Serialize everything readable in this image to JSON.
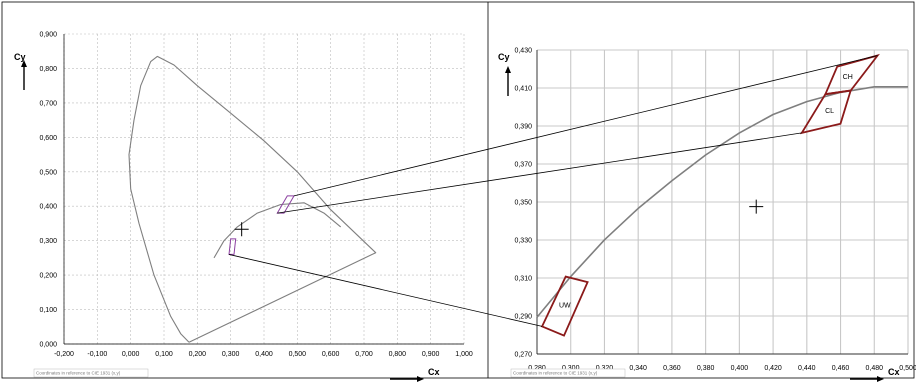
{
  "chart_data": [
    {
      "type": "line",
      "ylabel": "Cy",
      "xlabel": "Cx",
      "xlim": [
        -0.2,
        1.0
      ],
      "ylim": [
        0.0,
        0.9
      ],
      "x_ticks": [
        "-0,200",
        "-0,100",
        "0,000",
        "0,100",
        "0,200",
        "0,300",
        "0,400",
        "0,500",
        "0,600",
        "0,700",
        "0,800",
        "0,900",
        "1,000"
      ],
      "y_ticks": [
        "0,000",
        "0,100",
        "0,200",
        "0,300",
        "0,400",
        "0,500",
        "0,600",
        "0,700",
        "0,800",
        "0,900"
      ],
      "grid": true,
      "note": "Coordinates in reference to CIE 1931 (x,y)",
      "series": [
        {
          "values": [
            [
              0.175,
              0.005
            ],
            [
              0.15,
              0.03
            ],
            [
              0.12,
              0.08
            ],
            [
              0.07,
              0.2
            ],
            [
              0.025,
              0.35
            ],
            [
              0.0,
              0.45
            ],
            [
              -0.005,
              0.55
            ],
            [
              0.01,
              0.65
            ],
            [
              0.03,
              0.75
            ],
            [
              0.06,
              0.82
            ],
            [
              0.08,
              0.835
            ],
            [
              0.13,
              0.81
            ],
            [
              0.2,
              0.75
            ],
            [
              0.3,
              0.67
            ],
            [
              0.4,
              0.59
            ],
            [
              0.5,
              0.5
            ],
            [
              0.6,
              0.39
            ],
            [
              0.735,
              0.265
            ],
            [
              0.175,
              0.005
            ]
          ]
        },
        {
          "values": [
            [
              0.25,
              0.25
            ],
            [
              0.28,
              0.3
            ],
            [
              0.32,
              0.34
            ],
            [
              0.38,
              0.38
            ],
            [
              0.45,
              0.405
            ],
            [
              0.52,
              0.41
            ],
            [
              0.58,
              0.38
            ],
            [
              0.63,
              0.34
            ]
          ]
        }
      ],
      "regions": [
        {
          "points": [
            [
              0.295,
              0.26
            ],
            [
              0.31,
              0.26
            ],
            [
              0.315,
              0.305
            ],
            [
              0.3,
              0.305
            ]
          ]
        },
        {
          "points": [
            [
              0.44,
              0.38
            ],
            [
              0.47,
              0.43
            ],
            [
              0.49,
              0.43
            ],
            [
              0.46,
              0.38
            ]
          ]
        }
      ],
      "markers": [
        {
          "x": 0.333,
          "y": 0.333
        }
      ]
    },
    {
      "type": "line",
      "ylabel": "Cy",
      "xlabel": "Cx",
      "xlim": [
        0.28,
        0.5
      ],
      "ylim": [
        0.27,
        0.435
      ],
      "x_ticks": [
        "0,280",
        "0,300",
        "0,320",
        "0,340",
        "0,360",
        "0,380",
        "0,400",
        "0,420",
        "0,440",
        "0,460",
        "0,480",
        "0,500"
      ],
      "y_ticks": [
        "0,270",
        "0,290",
        "0,310",
        "0,330",
        "0,350",
        "0,370",
        "0,390",
        "0,410",
        "0,430"
      ],
      "grid": true,
      "note": "Coordinates in reference to CIE 1931 (x,y)",
      "series": [
        {
          "values": [
            [
              0.28,
              0.29
            ],
            [
              0.3,
              0.312
            ],
            [
              0.32,
              0.332
            ],
            [
              0.34,
              0.349
            ],
            [
              0.36,
              0.364
            ],
            [
              0.38,
              0.378
            ],
            [
              0.4,
              0.39
            ],
            [
              0.42,
              0.4
            ],
            [
              0.44,
              0.407
            ],
            [
              0.46,
              0.412
            ],
            [
              0.48,
              0.415
            ],
            [
              0.5,
              0.415
            ]
          ]
        }
      ],
      "regions": [
        {
          "label": "UW",
          "points": [
            [
              0.283,
              0.285
            ],
            [
              0.297,
              0.312
            ],
            [
              0.31,
              0.309
            ],
            [
              0.296,
              0.28
            ]
          ]
        },
        {
          "label": "CH",
          "points": [
            [
              0.451,
              0.411
            ],
            [
              0.458,
              0.426
            ],
            [
              0.482,
              0.432
            ],
            [
              0.466,
              0.413
            ]
          ]
        },
        {
          "label": "CL",
          "points": [
            [
              0.437,
              0.39
            ],
            [
              0.451,
              0.411
            ],
            [
              0.466,
              0.413
            ],
            [
              0.46,
              0.395
            ]
          ]
        }
      ],
      "markers": [
        {
          "x": 0.41,
          "y": 0.35
        }
      ]
    }
  ]
}
